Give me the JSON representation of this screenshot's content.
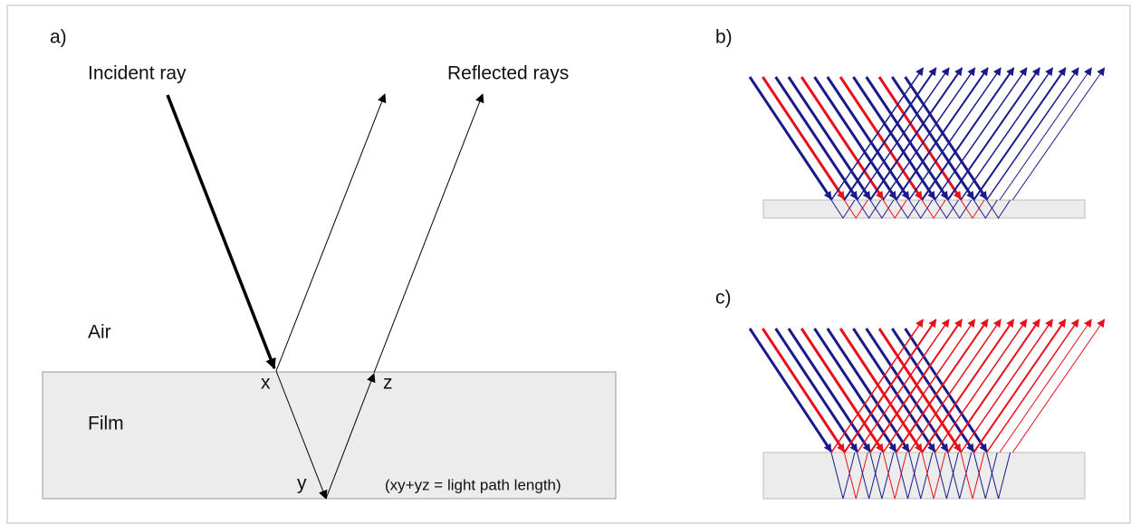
{
  "panels": {
    "a": {
      "label": "a)",
      "incident": "Incident ray",
      "reflected": "Reflected rays",
      "air": "Air",
      "film": "Film",
      "x": "x",
      "y": "y",
      "z": "z",
      "note": "(xy+yz = light path length)"
    },
    "b": {
      "label": "b)"
    },
    "c": {
      "label": "c)"
    }
  }
}
